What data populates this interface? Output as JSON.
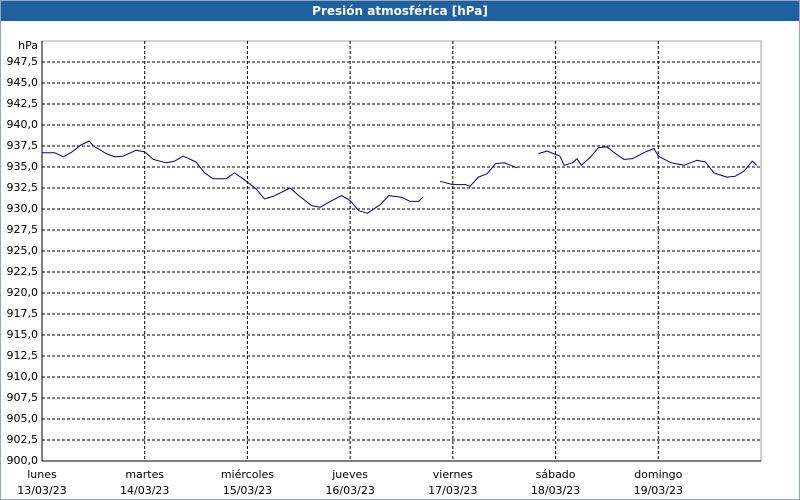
{
  "chart_data": {
    "type": "line",
    "title": "Presión atmosférica [hPa]",
    "y_label": "hPa",
    "color": "#00008b",
    "grid": true,
    "xlim": [
      0,
      168
    ],
    "ylim": [
      900,
      950
    ],
    "xticks": [
      {
        "value": 0,
        "label": [
          "lunes",
          "13/03/23"
        ]
      },
      {
        "value": 24,
        "label": [
          "martes",
          "14/03/23"
        ]
      },
      {
        "value": 48,
        "label": [
          "miércoles",
          "15/03/23"
        ]
      },
      {
        "value": 72,
        "label": [
          "jueves",
          "16/03/23"
        ]
      },
      {
        "value": 96,
        "label": [
          "viernes",
          "17/03/23"
        ]
      },
      {
        "value": 120,
        "label": [
          "sábado",
          "18/03/23"
        ]
      },
      {
        "value": 144,
        "label": [
          "domingo",
          "19/03/23"
        ]
      }
    ],
    "yticks": [
      {
        "value": 900,
        "label": "900,0"
      },
      {
        "value": 902.5,
        "label": "902,5"
      },
      {
        "value": 905,
        "label": "905,0"
      },
      {
        "value": 907.5,
        "label": "907,5"
      },
      {
        "value": 910,
        "label": "910,0"
      },
      {
        "value": 912.5,
        "label": "912,5"
      },
      {
        "value": 915,
        "label": "915,0"
      },
      {
        "value": 917.5,
        "label": "917,5"
      },
      {
        "value": 920,
        "label": "920,0"
      },
      {
        "value": 922.5,
        "label": "922,5"
      },
      {
        "value": 925,
        "label": "925,0"
      },
      {
        "value": 927.5,
        "label": "927,5"
      },
      {
        "value": 930,
        "label": "930,0"
      },
      {
        "value": 932.5,
        "label": "932,5"
      },
      {
        "value": 935,
        "label": "935,0"
      },
      {
        "value": 937.5,
        "label": "937,5"
      },
      {
        "value": 940,
        "label": "940,0"
      },
      {
        "value": 942.5,
        "label": "942,5"
      },
      {
        "value": 945,
        "label": "945,0"
      },
      {
        "value": 947.5,
        "label": "947,5"
      }
    ],
    "x": [
      0,
      3,
      5,
      7,
      9,
      11,
      12,
      15,
      17,
      19,
      22,
      24,
      26,
      29,
      31,
      33,
      36,
      38,
      40,
      43,
      45,
      47,
      50,
      52,
      54,
      58,
      60,
      63,
      65,
      67,
      70,
      72,
      74,
      76,
      79,
      81,
      84,
      86,
      88,
      89,
      90,
      93,
      96,
      99,
      100,
      102,
      104,
      106,
      108,
      111,
      112,
      116,
      118,
      121,
      122,
      124,
      125,
      126,
      128,
      130,
      132,
      134,
      136,
      138,
      141,
      143,
      144,
      147,
      150,
      153,
      155,
      157,
      160,
      162,
      164,
      166,
      167
    ],
    "values": [
      936.7,
      936.7,
      936.2,
      936.8,
      937.6,
      938.1,
      937.5,
      936.6,
      936.2,
      936.3,
      937.0,
      936.8,
      935.9,
      935.5,
      935.7,
      936.3,
      935.6,
      934.3,
      933.6,
      933.6,
      934.3,
      933.6,
      932.4,
      931.2,
      931.5,
      932.5,
      931.6,
      930.4,
      930.2,
      930.8,
      931.6,
      931.0,
      929.8,
      929.5,
      930.5,
      931.6,
      931.4,
      930.9,
      930.9,
      931.4,
      null,
      933.3,
      932.9,
      932.9,
      932.7,
      933.8,
      934.2,
      935.4,
      935.5,
      934.9,
      null,
      936.6,
      936.9,
      936.3,
      935.2,
      935.5,
      936.0,
      935.2,
      936.1,
      937.3,
      937.4,
      936.6,
      935.9,
      936.0,
      936.8,
      937.2,
      936.3,
      935.5,
      935.2,
      935.8,
      935.6,
      934.3,
      933.8,
      933.9,
      934.5,
      935.7,
      935.2
    ]
  }
}
